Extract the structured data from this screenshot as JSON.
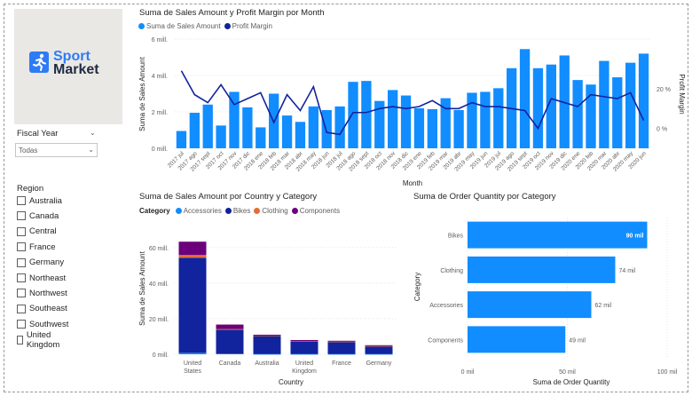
{
  "logo": {
    "line1": "Sport",
    "line2": "Market"
  },
  "slicers": {
    "fiscal_year": {
      "label": "Fiscal Year",
      "selected": "Todas"
    },
    "region": {
      "label": "Region",
      "items": [
        "Australia",
        "Canada",
        "Central",
        "France",
        "Germany",
        "Northeast",
        "Northwest",
        "Southeast",
        "Southwest",
        "United Kingdom"
      ]
    }
  },
  "colors": {
    "sales": "#118dff",
    "margin": "#12239e",
    "bikes": "#12239e",
    "accessories": "#118dff",
    "clothing": "#e66c37",
    "components": "#6b007b"
  },
  "chart_data": [
    {
      "type": "bar",
      "title": "Suma de Sales Amount y Profit Margin por Month",
      "legend": [
        "Suma de Sales Amount",
        "Profit Margin"
      ],
      "xlabel": "Month",
      "ylabel": "Suma de Sales Amount",
      "y2label": "Profit Margin",
      "ylim": [
        0,
        6
      ],
      "y_ticks": [
        "0 mill.",
        "2 mill.",
        "4 mill.",
        "6 mill."
      ],
      "y2_ticks": [
        "0 %",
        "20 %"
      ],
      "y2lim": [
        -10,
        45
      ],
      "categories": [
        "2017 jul",
        "2017 ago",
        "2017 sept",
        "2017 oct",
        "2017 nov",
        "2017 dic",
        "2018 ene",
        "2018 feb",
        "2018 mar",
        "2018 abr",
        "2018 may",
        "2018 jun",
        "2018 jul",
        "2018 ago",
        "2018 sept",
        "2018 oct",
        "2018 nov",
        "2018 dic",
        "2019 ene",
        "2019 feb",
        "2019 mar",
        "2019 abr",
        "2019 may",
        "2019 jun",
        "2019 jul",
        "2019 ago",
        "2019 sept",
        "2019 oct",
        "2019 nov",
        "2019 dic",
        "2020 ene",
        "2020 feb",
        "2020 mar",
        "2020 abr",
        "2020 may",
        "2020 jun"
      ],
      "series": [
        {
          "name": "Suma de Sales Amount",
          "kind": "bar",
          "values": [
            0.95,
            1.95,
            2.4,
            1.25,
            3.1,
            2.25,
            1.15,
            3.0,
            1.8,
            1.45,
            2.3,
            2.1,
            2.3,
            3.65,
            3.7,
            2.6,
            3.2,
            2.9,
            2.2,
            2.15,
            2.75,
            2.1,
            3.05,
            3.1,
            3.3,
            4.4,
            5.45,
            4.4,
            4.6,
            5.1,
            3.75,
            3.5,
            4.8,
            3.9,
            4.7,
            5.2
          ]
        },
        {
          "name": "Profit Margin",
          "kind": "line",
          "values": [
            29,
            17,
            13,
            22,
            12,
            15,
            18,
            3,
            17,
            9,
            21,
            -2,
            -3,
            8,
            8,
            10,
            11,
            10,
            11,
            14,
            10,
            10,
            13,
            11,
            11,
            10,
            9,
            0,
            15,
            13,
            11,
            17,
            16,
            15,
            18,
            4
          ]
        }
      ]
    },
    {
      "type": "bar",
      "title": "Suma de Sales Amount por Country y Category",
      "legend_title": "Category",
      "legend": [
        "Accessories",
        "Bikes",
        "Clothing",
        "Components"
      ],
      "xlabel": "Country",
      "ylabel": "Suma de Sales Amount",
      "ylim": [
        0,
        70
      ],
      "y_ticks": [
        "0 mill.",
        "20 mill.",
        "40 mill.",
        "60 mill."
      ],
      "categories": [
        "United States",
        "Canada",
        "Australia",
        "United Kingdom",
        "France",
        "Germany"
      ],
      "series": [
        {
          "name": "Accessories",
          "values": [
            0.8,
            0.3,
            0.1,
            0.1,
            0.1,
            0.1
          ]
        },
        {
          "name": "Bikes",
          "values": [
            53.5,
            13.5,
            10.2,
            7.0,
            6.8,
            4.3
          ]
        },
        {
          "name": "Clothing",
          "values": [
            1.5,
            0.4,
            0.2,
            0.2,
            0.2,
            0.2
          ]
        },
        {
          "name": "Components",
          "values": [
            7.5,
            2.5,
            0.5,
            0.7,
            0.5,
            0.5
          ]
        }
      ]
    },
    {
      "type": "bar",
      "orientation": "horizontal",
      "title": "Suma de Order Quantity por Category",
      "xlabel": "Suma de Order Quantity",
      "ylabel": "Category",
      "xlim": [
        0,
        100
      ],
      "x_ticks": [
        "0 mil",
        "50 mil",
        "100 mil"
      ],
      "categories": [
        "Bikes",
        "Clothing",
        "Accessories",
        "Components"
      ],
      "values": [
        90,
        74,
        62,
        49
      ],
      "data_labels": [
        "90 mil",
        "74 mil",
        "62 mil",
        "49 mil"
      ]
    }
  ]
}
